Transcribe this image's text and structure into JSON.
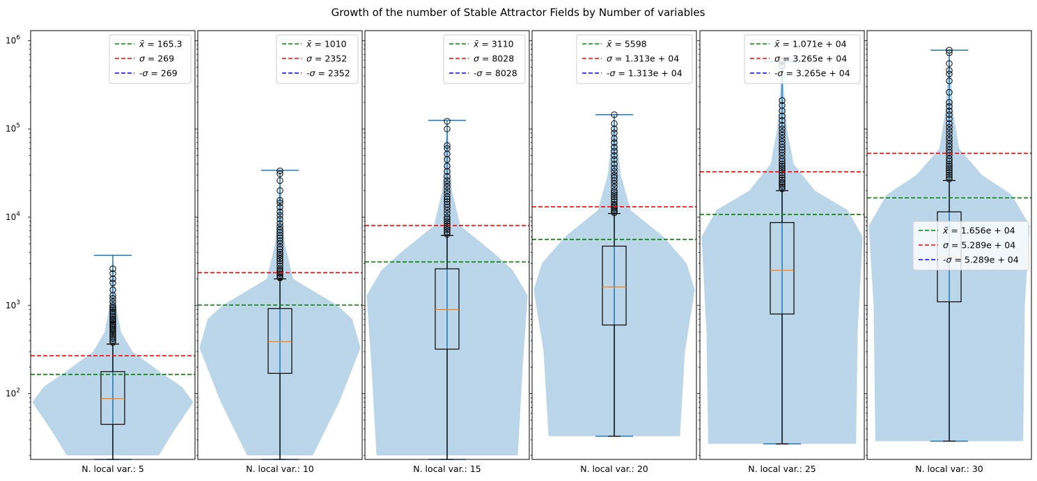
{
  "chart_data": {
    "type": "violin+box",
    "title": "Growth of the number of Stable Attractor Fields by Number of variables",
    "yscale": "log",
    "ylim": [
      18,
      1300000
    ],
    "y_tick_labels": [
      "10^2",
      "10^3",
      "10^4",
      "10^5",
      "10^6"
    ],
    "legend_series": [
      "mean",
      "+sigma",
      "-sigma"
    ],
    "colors": {
      "mean": "#008000",
      "plus_sigma": "#ff0000",
      "minus_sigma": "#0000ff",
      "violin": "#1f77b4",
      "median": "#ff7f0e",
      "whisker_cap": "#1f77b4",
      "box": "#000000"
    },
    "panels": [
      {
        "xlabel": "N. local var.: 5",
        "mean": 165.3,
        "sigma": 269,
        "legend": [
          "$\\bar{x} = 165.3$",
          "$\\sigma = 269$",
          "-$\\sigma = 269$"
        ],
        "legend_loc": "upper right",
        "box": {
          "q1": 45,
          "median": 88,
          "q3": 178,
          "whisker_low": 18,
          "whisker_high": 365
        },
        "violin": {
          "min": 18,
          "max": 3700,
          "profile": [
            [
              20,
              0.28
            ],
            [
              40,
              0.38
            ],
            [
              80,
              0.49
            ],
            [
              120,
              0.42
            ],
            [
              170,
              0.3
            ],
            [
              300,
              0.12
            ],
            [
              500,
              0.05
            ],
            [
              1000,
              0.02
            ],
            [
              3700,
              0
            ]
          ]
        },
        "fliers": [
          380,
          400,
          420,
          440,
          460,
          480,
          500,
          520,
          540,
          560,
          580,
          600,
          620,
          650,
          680,
          700,
          730,
          760,
          800,
          840,
          880,
          920,
          950,
          1000,
          1100,
          1200,
          1300,
          1500,
          1800,
          2000,
          2300,
          2600
        ]
      },
      {
        "xlabel": "N. local var.: 10",
        "mean": 1010,
        "sigma": 2352,
        "legend": [
          "$\\bar{x} = 1010$",
          "$\\sigma = 2352$",
          "-$\\sigma = 2352$"
        ],
        "legend_loc": "upper right",
        "box": {
          "q1": 170,
          "median": 390,
          "q3": 920,
          "whisker_low": 18,
          "whisker_high": 2000
        },
        "violin": {
          "min": 18,
          "max": 34000,
          "profile": [
            [
              20,
              0.2
            ],
            [
              80,
              0.36
            ],
            [
              330,
              0.49
            ],
            [
              700,
              0.44
            ],
            [
              1000,
              0.35
            ],
            [
              2000,
              0.08
            ],
            [
              5000,
              0.03
            ],
            [
              10000,
              0.015
            ],
            [
              34000,
              0
            ]
          ]
        },
        "fliers": [
          2050,
          2100,
          2200,
          2300,
          2400,
          2500,
          2600,
          2800,
          3000,
          3200,
          3400,
          3600,
          3800,
          4000,
          4300,
          4600,
          5000,
          5400,
          5800,
          6200,
          6700,
          7200,
          7800,
          8500,
          9500,
          10500,
          11500,
          13000,
          14500,
          15500,
          20000,
          26000,
          31000,
          33500
        ]
      },
      {
        "xlabel": "N. local var.: 15",
        "mean": 3110,
        "sigma": 8028,
        "legend": [
          "$\\bar{x} = 3110$",
          "$\\sigma = 8028$",
          "-$\\sigma = 8028$"
        ],
        "legend_loc": "upper right",
        "box": {
          "q1": 320,
          "median": 900,
          "q3": 2600,
          "whisker_low": 18,
          "whisker_high": 6200
        },
        "violin": {
          "min": 18,
          "max": 125000,
          "profile": [
            [
              20,
              0.43
            ],
            [
              200,
              0.46
            ],
            [
              1300,
              0.49
            ],
            [
              2500,
              0.4
            ],
            [
              4000,
              0.28
            ],
            [
              8000,
              0.08
            ],
            [
              20000,
              0.03
            ],
            [
              50000,
              0.015
            ],
            [
              125000,
              0
            ]
          ]
        },
        "fliers": [
          6400,
          6800,
          7200,
          7600,
          8000,
          8500,
          9000,
          9500,
          10000,
          11000,
          12000,
          13000,
          14000,
          15000,
          16000,
          17000,
          18500,
          20000,
          22000,
          24000,
          26000,
          29000,
          33000,
          38000,
          45000,
          52000,
          60000,
          65000,
          100000,
          122000
        ]
      },
      {
        "xlabel": "N. local var.: 20",
        "mean": 5598,
        "sigma": 13130,
        "legend": [
          "$\\bar{x} = 5598$",
          "$\\sigma = 1.313e+04$",
          "-$\\sigma = 1.313e+04$"
        ],
        "legend_loc": "upper right",
        "box": {
          "q1": 600,
          "median": 1620,
          "q3": 4700,
          "whisker_low": 33,
          "whisker_high": 11000
        },
        "violin": {
          "min": 33,
          "max": 145000,
          "profile": [
            [
              33,
              0.4
            ],
            [
              300,
              0.43
            ],
            [
              1500,
              0.49
            ],
            [
              3000,
              0.44
            ],
            [
              6000,
              0.3
            ],
            [
              12000,
              0.1
            ],
            [
              30000,
              0.04
            ],
            [
              80000,
              0.015
            ],
            [
              145000,
              0
            ]
          ]
        },
        "fliers": [
          11200,
          11600,
          12000,
          12500,
          13000,
          13500,
          14000,
          15000,
          16000,
          17000,
          18000,
          19000,
          20000,
          22000,
          24000,
          26000,
          28000,
          30000,
          33000,
          36000,
          40000,
          45000,
          50000,
          56000,
          62000,
          70000,
          78000,
          90000,
          100000,
          115000,
          145000
        ]
      },
      {
        "xlabel": "N. local var.: 25",
        "mean": 10710,
        "sigma": 32650,
        "legend": [
          "$\\bar{x} = 1.071e+04$",
          "$\\sigma = 3.265e+04$",
          "-$\\sigma = 3.265e+04$"
        ],
        "legend_loc": "upper right",
        "box": {
          "q1": 800,
          "median": 2500,
          "q3": 8700,
          "whisker_low": 27,
          "whisker_high": 20000
        },
        "violin": {
          "min": 27,
          "max": 580000,
          "profile": [
            [
              27,
              0.45
            ],
            [
              500,
              0.46
            ],
            [
              6000,
              0.49
            ],
            [
              12000,
              0.4
            ],
            [
              20000,
              0.2
            ],
            [
              40000,
              0.07
            ],
            [
              100000,
              0.03
            ],
            [
              300000,
              0.01
            ],
            [
              580000,
              0
            ]
          ]
        },
        "fliers": [
          21000,
          22000,
          23000,
          24000,
          25000,
          26500,
          28000,
          30000,
          32000,
          34000,
          36000,
          38000,
          40000,
          43000,
          46000,
          50000,
          54000,
          58000,
          62000,
          67000,
          72000,
          78000,
          85000,
          92000,
          100000,
          110000,
          125000,
          140000,
          160000,
          185000,
          210000,
          520000,
          580000
        ]
      },
      {
        "xlabel": "N. local var.: 30",
        "mean": 16560,
        "sigma": 52890,
        "legend": [
          "$\\bar{x} = 1.656e+04$",
          "$\\sigma = 5.289e+04$",
          "-$\\sigma = 5.289e+04$"
        ],
        "legend_loc": "center right",
        "box": {
          "q1": 1100,
          "median": 3500,
          "q3": 11500,
          "whisker_low": 29,
          "whisker_high": 26000
        },
        "violin": {
          "min": 29,
          "max": 780000,
          "profile": [
            [
              29,
              0.45
            ],
            [
              1000,
              0.46
            ],
            [
              8000,
              0.49
            ],
            [
              18000,
              0.38
            ],
            [
              30000,
              0.2
            ],
            [
              60000,
              0.06
            ],
            [
              150000,
              0.025
            ],
            [
              400000,
              0.01
            ],
            [
              780000,
              0
            ]
          ]
        },
        "fliers": [
          27000,
          28500,
          30000,
          32000,
          34000,
          36000,
          38000,
          40000,
          43000,
          46000,
          50000,
          54000,
          58000,
          63000,
          68000,
          74000,
          80000,
          88000,
          96000,
          105000,
          115000,
          130000,
          145000,
          160000,
          180000,
          200000,
          260000,
          350000,
          420000,
          460000,
          550000,
          730000,
          780000
        ]
      }
    ]
  }
}
